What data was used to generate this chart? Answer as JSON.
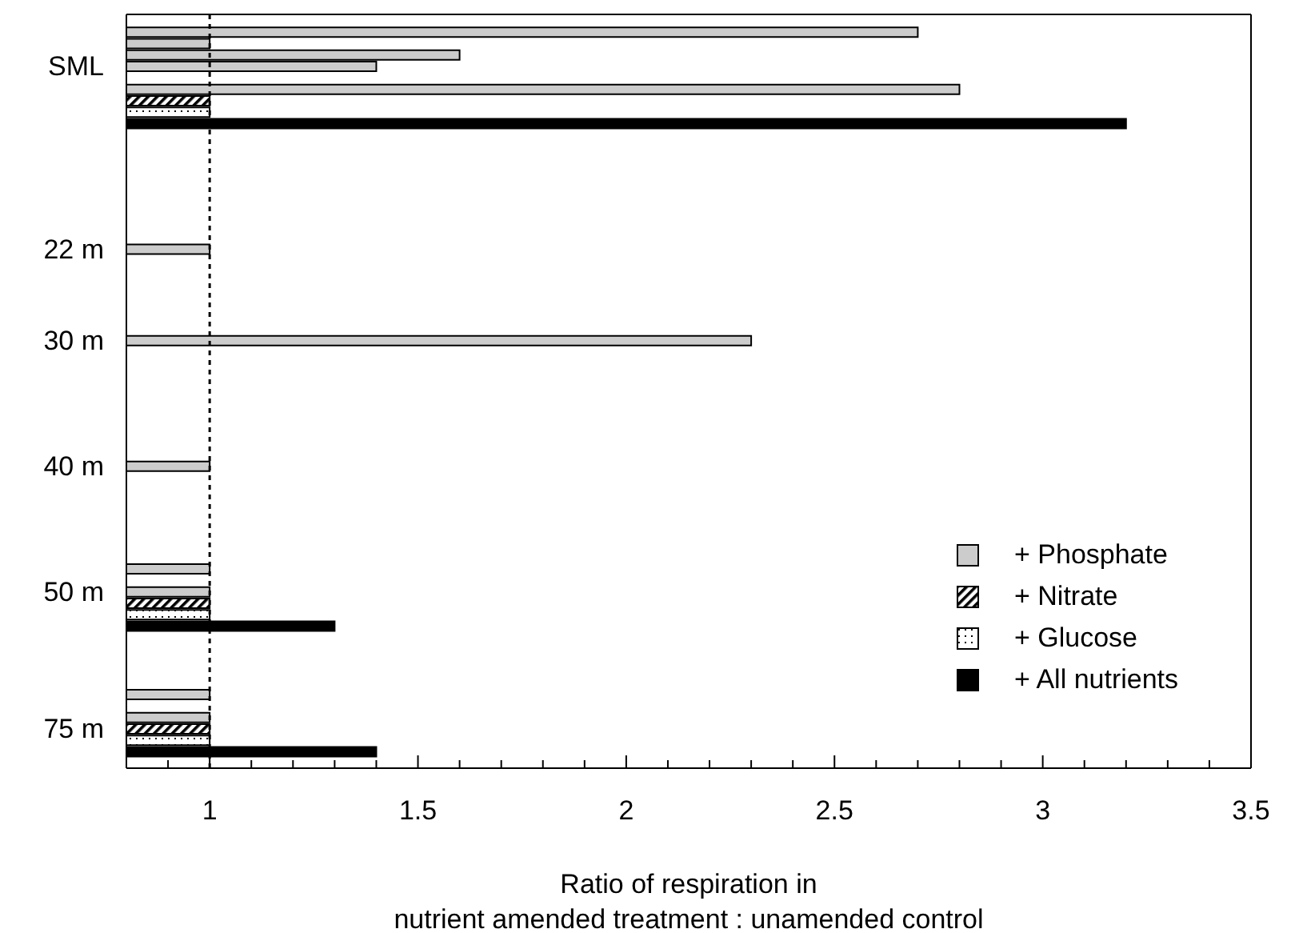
{
  "chart_data": {
    "type": "bar",
    "orientation": "horizontal",
    "xlabel": "Ratio of respiration in\nnutrient amended treatment : unamended control",
    "categories": [
      null,
      null,
      null,
      null,
      "SML",
      null,
      null,
      null,
      null,
      null,
      null,
      null,
      null,
      null,
      null,
      null,
      null,
      null,
      null,
      null,
      "22 m",
      null,
      null,
      null,
      null,
      null,
      null,
      null,
      "30 m",
      null,
      null,
      null,
      null,
      null,
      null,
      null,
      null,
      null,
      null,
      "40 m",
      null,
      null,
      null,
      null,
      null,
      null,
      null,
      null,
      null,
      null,
      "50 m",
      null,
      null,
      null,
      null,
      null,
      null,
      null,
      null,
      null,
      null,
      null,
      "75 m",
      null,
      null,
      null
    ],
    "series": [
      {
        "name": "+ Phosphate",
        "color": "#cccccc",
        "values": [
          null,
          2.7,
          1.0,
          1.6,
          1.4,
          null,
          2.8,
          null,
          null,
          null,
          null,
          null,
          null,
          null,
          null,
          null,
          null,
          null,
          null,
          null,
          1.0,
          null,
          null,
          null,
          null,
          null,
          null,
          null,
          2.3,
          null,
          null,
          null,
          null,
          null,
          null,
          null,
          null,
          null,
          null,
          1.0,
          null,
          null,
          null,
          null,
          null,
          null,
          null,
          null,
          1.0,
          null,
          1.0,
          null,
          null,
          null,
          null,
          null,
          null,
          null,
          null,
          1.0,
          null,
          1.0,
          null,
          null,
          null,
          null
        ]
      },
      {
        "name": "+ Nitrate",
        "color": "#000000",
        "values": [
          null,
          null,
          null,
          null,
          null,
          null,
          null,
          1.0,
          null,
          null,
          null,
          null,
          null,
          null,
          null,
          null,
          null,
          null,
          null,
          null,
          null,
          null,
          null,
          null,
          null,
          null,
          null,
          null,
          null,
          null,
          null,
          null,
          null,
          null,
          null,
          null,
          null,
          null,
          null,
          null,
          null,
          null,
          null,
          null,
          null,
          null,
          null,
          null,
          null,
          null,
          null,
          1.0,
          null,
          null,
          null,
          null,
          null,
          null,
          null,
          null,
          null,
          null,
          1.0,
          null,
          null,
          null
        ]
      },
      {
        "name": "+ Glucose",
        "color": "#000000",
        "values": [
          null,
          null,
          null,
          null,
          null,
          null,
          null,
          null,
          1.0,
          null,
          null,
          null,
          null,
          null,
          null,
          null,
          null,
          null,
          null,
          null,
          null,
          null,
          null,
          null,
          null,
          null,
          null,
          null,
          null,
          null,
          null,
          null,
          null,
          null,
          null,
          null,
          null,
          null,
          null,
          null,
          null,
          null,
          null,
          null,
          null,
          null,
          null,
          null,
          null,
          null,
          null,
          null,
          1.0,
          null,
          null,
          null,
          null,
          null,
          null,
          null,
          null,
          null,
          null,
          1.0,
          null,
          null
        ]
      },
      {
        "name": "+ All nutrients",
        "color": "#000000",
        "values": [
          null,
          null,
          null,
          null,
          null,
          null,
          null,
          null,
          null,
          3.2,
          null,
          null,
          null,
          null,
          null,
          null,
          null,
          null,
          null,
          null,
          null,
          null,
          null,
          null,
          null,
          null,
          null,
          null,
          null,
          null,
          null,
          null,
          null,
          null,
          null,
          null,
          null,
          null,
          null,
          null,
          null,
          null,
          null,
          null,
          null,
          null,
          null,
          null,
          null,
          null,
          null,
          null,
          null,
          1.3,
          null,
          null,
          null,
          null,
          null,
          null,
          null,
          null,
          null,
          null,
          1.4,
          null
        ]
      }
    ],
    "xlim": [
      0.8,
      3.5
    ],
    "xticks": [
      {
        "value": 0.9,
        "label": null
      },
      1,
      {
        "value": 1.1,
        "label": null
      },
      {
        "value": 1.2,
        "label": null
      },
      {
        "value": 1.3,
        "label": null
      },
      {
        "value": 1.4,
        "label": null
      },
      1.5,
      {
        "value": 1.6,
        "label": null
      },
      {
        "value": 1.7,
        "label": null
      },
      {
        "value": 1.8,
        "label": null
      },
      {
        "value": 1.9,
        "label": null
      },
      2,
      {
        "value": 2.1,
        "label": null
      },
      {
        "value": 2.2,
        "label": null
      },
      {
        "value": 2.3,
        "label": null
      },
      {
        "value": 2.4,
        "label": null
      },
      2.5,
      {
        "value": 2.6,
        "label": null
      },
      {
        "value": 2.7,
        "label": null
      },
      {
        "value": 2.8,
        "label": null
      },
      {
        "value": 2.9,
        "label": null
      },
      3,
      {
        "value": 3.1,
        "label": null
      },
      {
        "value": 3.2,
        "label": null
      },
      {
        "value": 3.3,
        "label": null
      },
      {
        "value": 3.4,
        "label": null
      },
      3.5
    ],
    "ref_lines": [
      {
        "axis": "x",
        "value": 1,
        "line_style": "dotted",
        "color": "#000000"
      }
    ],
    "legend": "bottom right",
    "grid": false
  }
}
